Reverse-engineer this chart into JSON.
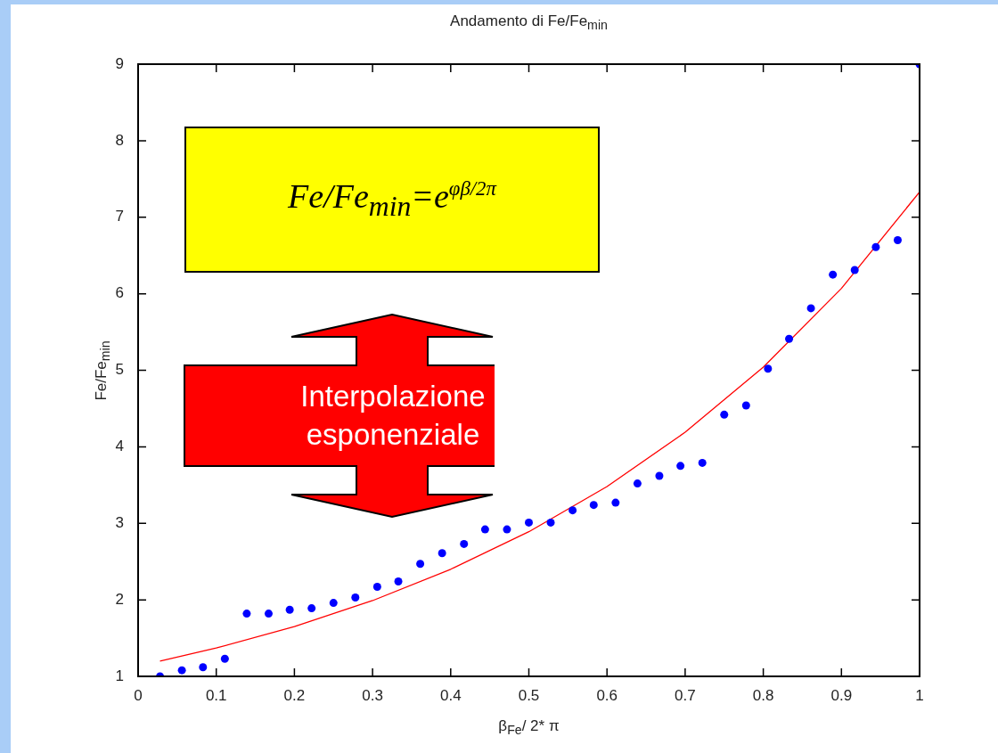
{
  "chart_data": {
    "type": "scatter",
    "title": "Andamento di Fe/Fe$_{min}$",
    "xlabel": "β$_{Fe}$/ 2* π",
    "ylabel": "Fe/Fe$_{min}$",
    "xlim": [
      0,
      1
    ],
    "xticks": [
      0,
      0.1,
      0.2,
      0.3,
      0.4,
      0.5,
      0.6,
      0.7,
      0.8,
      0.9,
      1
    ],
    "ylim": [
      1,
      9
    ],
    "yticks": [
      1,
      2,
      3,
      4,
      5,
      6,
      7,
      8,
      9
    ],
    "grid": false,
    "legend": false,
    "series": [
      {
        "type": "scatter",
        "marker": "circle",
        "color": "#0000ff",
        "x": [
          0.028,
          0.056,
          0.083,
          0.111,
          0.139,
          0.167,
          0.194,
          0.222,
          0.25,
          0.278,
          0.306,
          0.333,
          0.361,
          0.389,
          0.417,
          0.444,
          0.472,
          0.5,
          0.528,
          0.556,
          0.583,
          0.611,
          0.639,
          0.667,
          0.694,
          0.722,
          0.75,
          0.778,
          0.806,
          0.833,
          0.861,
          0.889,
          0.917,
          0.944,
          0.972,
          1
        ],
        "values": [
          1.0,
          1.08,
          1.12,
          1.23,
          1.82,
          1.82,
          1.87,
          1.89,
          1.96,
          2.03,
          2.17,
          2.24,
          2.47,
          2.61,
          2.73,
          2.92,
          2.92,
          3.01,
          3.01,
          3.17,
          3.24,
          3.27,
          3.52,
          3.62,
          3.75,
          3.79,
          4.42,
          4.54,
          5.02,
          5.41,
          5.81,
          6.25,
          6.31,
          6.61,
          6.7,
          9.0
        ]
      },
      {
        "type": "line",
        "marker": "none",
        "color": "#ff0000",
        "x": [
          0.028,
          0.1,
          0.2,
          0.3,
          0.4,
          0.5,
          0.6,
          0.7,
          0.8,
          0.9,
          1
        ],
        "values": [
          1.2,
          1.37,
          1.65,
          1.99,
          2.4,
          2.89,
          3.48,
          4.19,
          5.04,
          6.07,
          7.33
        ]
      }
    ],
    "annotations": [
      "Fe/Fe$_{min}$=e$^{φβ/2π}$",
      "Interpolazione esponenziale"
    ]
  }
}
